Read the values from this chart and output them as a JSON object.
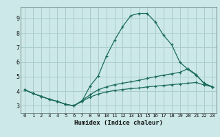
{
  "xlabel": "Humidex (Indice chaleur)",
  "xlim": [
    -0.5,
    23.5
  ],
  "ylim": [
    2.5,
    9.8
  ],
  "xticks": [
    0,
    1,
    2,
    3,
    4,
    5,
    6,
    7,
    8,
    9,
    10,
    11,
    12,
    13,
    14,
    15,
    16,
    17,
    18,
    19,
    20,
    21,
    22,
    23
  ],
  "yticks": [
    3,
    4,
    5,
    6,
    7,
    8,
    9
  ],
  "background_color": "#cce8e8",
  "grid_color": "#aacccc",
  "line_color": "#1a6b5a",
  "line1_x": [
    0,
    1,
    2,
    3,
    4,
    5,
    6,
    7,
    8,
    9,
    10,
    11,
    12,
    13,
    14,
    15,
    16,
    17,
    18,
    19,
    20,
    21,
    22,
    23
  ],
  "line1_y": [
    4.1,
    3.85,
    3.65,
    3.45,
    3.3,
    3.1,
    3.0,
    3.3,
    4.35,
    5.05,
    6.4,
    7.5,
    8.45,
    9.2,
    9.35,
    9.35,
    8.75,
    7.85,
    7.2,
    6.0,
    5.5,
    5.1,
    4.55,
    4.3
  ],
  "line2_x": [
    0,
    1,
    2,
    3,
    4,
    5,
    6,
    7,
    8,
    9,
    10,
    11,
    12,
    13,
    14,
    15,
    16,
    17,
    18,
    19,
    20,
    21,
    22,
    23
  ],
  "line2_y": [
    4.1,
    3.85,
    3.65,
    3.45,
    3.3,
    3.1,
    3.0,
    3.35,
    3.75,
    4.1,
    4.3,
    4.45,
    4.55,
    4.65,
    4.75,
    4.88,
    5.0,
    5.1,
    5.2,
    5.3,
    5.55,
    5.15,
    4.5,
    4.3
  ],
  "line3_x": [
    0,
    1,
    2,
    3,
    4,
    5,
    6,
    7,
    8,
    9,
    10,
    11,
    12,
    13,
    14,
    15,
    16,
    17,
    18,
    19,
    20,
    21,
    22,
    23
  ],
  "line3_y": [
    4.1,
    3.85,
    3.65,
    3.45,
    3.3,
    3.1,
    3.0,
    3.3,
    3.6,
    3.8,
    3.95,
    4.05,
    4.12,
    4.18,
    4.22,
    4.3,
    4.35,
    4.4,
    4.45,
    4.5,
    4.55,
    4.6,
    4.42,
    4.3
  ],
  "marker": "+",
  "markersize": 3.5,
  "linewidth": 0.9
}
